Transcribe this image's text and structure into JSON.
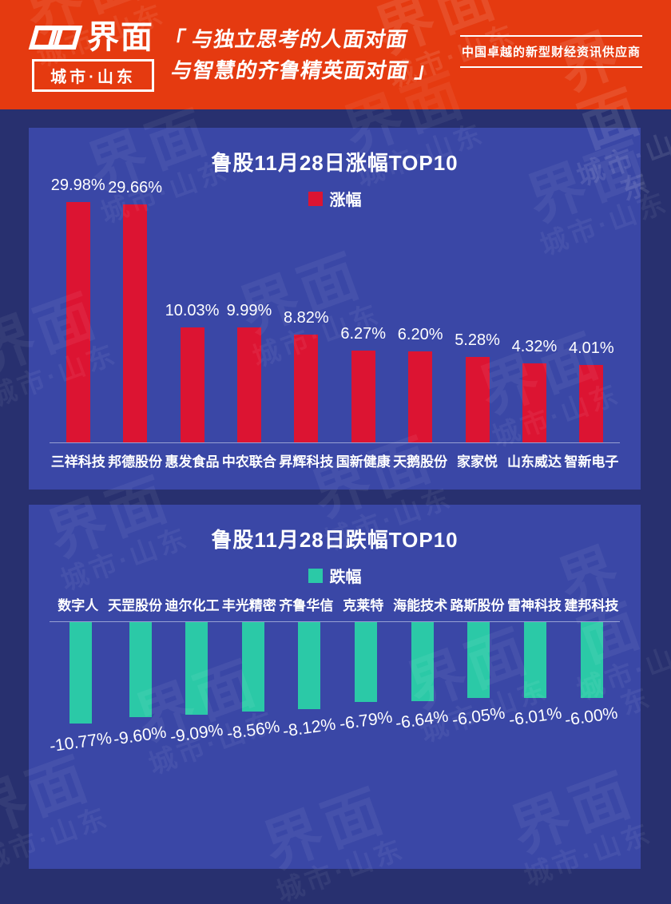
{
  "header": {
    "logo": {
      "brand": "界面",
      "sub": "城市·山东"
    },
    "slogan_line1": "「 与独立思考的人面对面",
    "slogan_line2": "与智慧的齐鲁精英面对面 」",
    "tagline": "中国卓越的新型财经资讯供应商"
  },
  "colors": {
    "brand_red": "#e53a10",
    "background_navy": "#28306f",
    "panel_blue": "#3a47a6",
    "gain_red": "#dc1432",
    "loss_teal": "#2bc9a7"
  },
  "chart_data": [
    {
      "type": "bar",
      "title": "鲁股11月28日涨幅TOP10",
      "legend": "涨幅",
      "legend_position": "top",
      "direction": "up",
      "unit": "%",
      "bar_color": "#dc1432",
      "grid": false,
      "categories": [
        "三祥科技",
        "邦德股份",
        "惠发食品",
        "中农联合",
        "昇辉科技",
        "国新健康",
        "天鹅股份",
        "家家悦",
        "山东威达",
        "智新电子"
      ],
      "values": [
        29.98,
        29.66,
        10.03,
        9.99,
        8.82,
        6.27,
        6.2,
        5.28,
        4.32,
        4.01
      ]
    },
    {
      "type": "bar",
      "title": "鲁股11月28日跌幅TOP10",
      "legend": "跌幅",
      "legend_position": "top",
      "direction": "down",
      "unit": "%",
      "bar_color": "#2bc9a7",
      "grid": false,
      "categories": [
        "数字人",
        "天罡股份",
        "迪尔化工",
        "丰光精密",
        "齐鲁华信",
        "克莱特",
        "海能技术",
        "路斯股份",
        "雷神科技",
        "建邦科技"
      ],
      "values": [
        -10.77,
        -9.6,
        -9.09,
        -8.56,
        -8.12,
        -6.79,
        -6.64,
        -6.05,
        -6.01,
        -6.0
      ]
    }
  ],
  "watermark": {
    "brand": "界面",
    "sub": "城市·山东"
  }
}
